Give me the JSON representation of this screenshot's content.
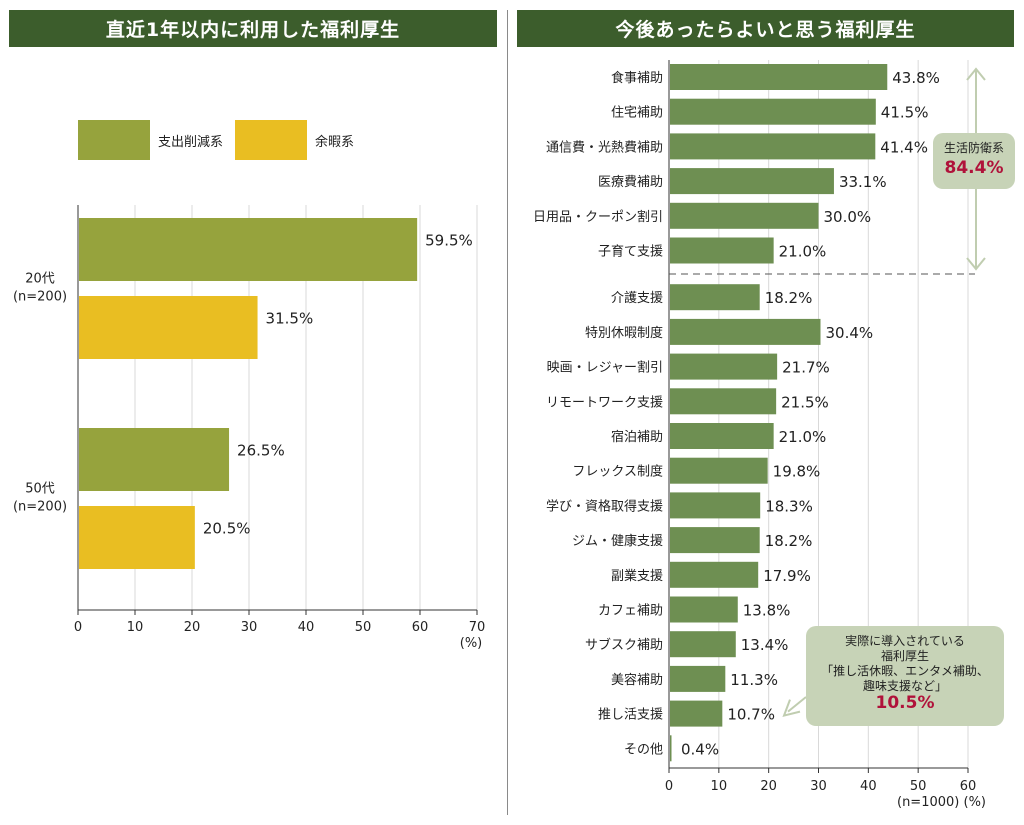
{
  "left_chart_title": "直近1年以内に利用した福利厚生",
  "right_chart_title": "今後あったらよいと思う福利厚生",
  "legend": [
    {
      "label": "支出削減系",
      "color": "#96a33d"
    },
    {
      "label": "余暇系",
      "color": "#e9be22"
    }
  ],
  "callouts": {
    "defense": {
      "label": "生活防衛系",
      "value": "84.4%"
    },
    "actual": {
      "lines": [
        "実際に導入されている",
        "福利厚生",
        "「推し活休暇、エンタメ補助、",
        "趣味支援など」"
      ],
      "value": "10.5%"
    }
  },
  "colors": {
    "header": "#3c5d2c",
    "bar_right": "#6e8f52",
    "callout_bg": "#c7d3b7",
    "highlight_text": "#b0123a",
    "grid": "#d9d9d9"
  },
  "chart_data": [
    {
      "type": "bar",
      "orientation": "horizontal",
      "categories": [
        "20代\n(n=200)",
        "50代\n(n=200)"
      ],
      "series": [
        {
          "name": "支出削減系",
          "values": [
            59.5,
            26.5
          ],
          "labels": [
            "59.5%",
            "26.5%"
          ]
        },
        {
          "name": "余暇系",
          "values": [
            31.5,
            20.5
          ],
          "labels": [
            "31.5%",
            "20.5%"
          ]
        }
      ],
      "xlim": [
        0,
        70
      ],
      "xticks": [
        "0",
        "10",
        "20",
        "30",
        "40",
        "50",
        "60",
        "70"
      ],
      "xunit": "(%)",
      "grid": true,
      "legend_position": "top-left"
    },
    {
      "type": "bar",
      "orientation": "horizontal",
      "categories": [
        "食事補助",
        "住宅補助",
        "通信費・光熱費補助",
        "医療費補助",
        "日用品・クーポン割引",
        "子育て支援",
        "介護支援",
        "特別休暇制度",
        "映画・レジャー割引",
        "リモートワーク支援",
        "宿泊補助",
        "フレックス制度",
        "学び・資格取得支援",
        "ジム・健康支援",
        "副業支援",
        "カフェ補助",
        "サブスク補助",
        "美容補助",
        "推し活支援",
        "その他"
      ],
      "values": [
        43.8,
        41.5,
        41.4,
        33.1,
        30.0,
        21.0,
        18.2,
        30.4,
        21.7,
        21.5,
        21.0,
        19.8,
        18.3,
        18.2,
        17.9,
        13.8,
        13.4,
        11.3,
        10.7,
        0.4
      ],
      "labels": [
        "43.8%",
        "41.5%",
        "41.4%",
        "33.1%",
        "30.0%",
        "21.0%",
        "18.2%",
        "30.4%",
        "21.7%",
        "21.5%",
        "21.0%",
        "19.8%",
        "18.3%",
        "18.2%",
        "17.9%",
        "13.8%",
        "13.4%",
        "11.3%",
        "10.7%",
        "0.4%"
      ],
      "xlim": [
        0,
        60
      ],
      "xticks": [
        "0",
        "10",
        "20",
        "30",
        "40",
        "50",
        "60"
      ],
      "xunit": "(n=1000) (%)",
      "grid": true
    }
  ]
}
